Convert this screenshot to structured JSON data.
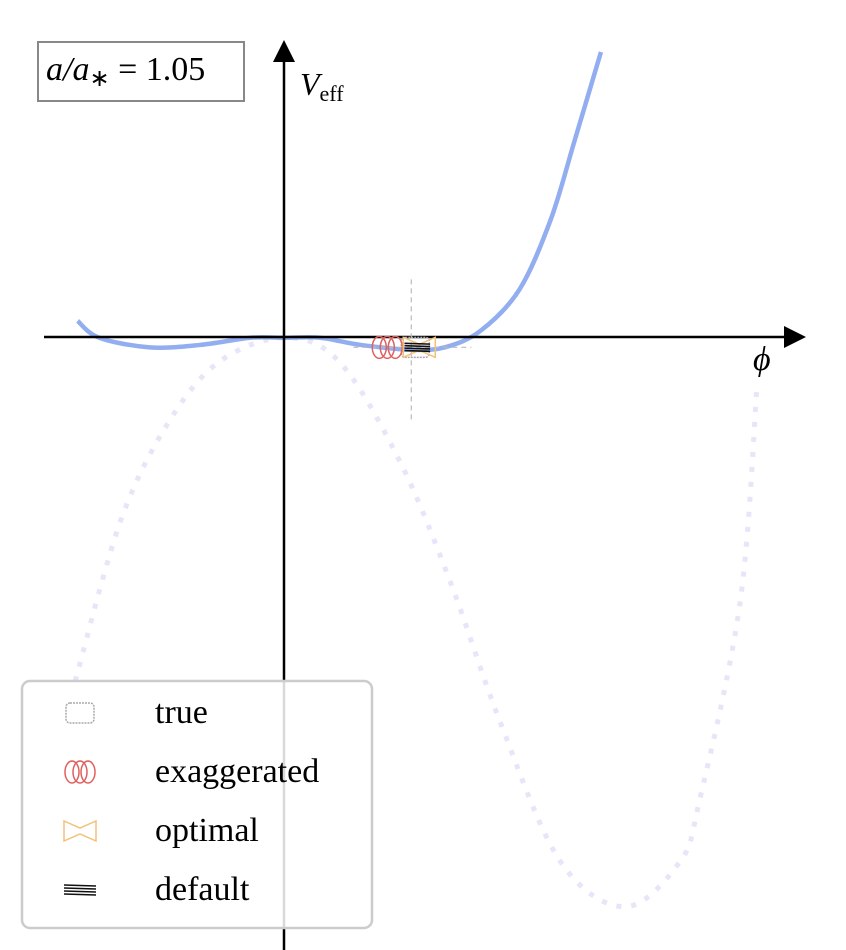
{
  "chart_data": {
    "type": "line",
    "annotation": [
      "a/a",
      "∗",
      " = 1.05"
    ],
    "y_label": [
      "V",
      "eff"
    ],
    "x_label": "ϕ",
    "xlim": [
      -1.0,
      2.17
    ],
    "ylim": [
      -2.55,
      1.24
    ],
    "series": [
      {
        "color": "#92aef0",
        "style": "solid",
        "x": [
          -0.86,
          -0.77,
          -0.56,
          -0.35,
          -0.14,
          0,
          0.15,
          0.32,
          0.53,
          0.67,
          0.82,
          0.98,
          1.11,
          1.21,
          1.32
        ],
        "y": [
          0.07,
          0,
          -0.04,
          -0.03,
          0,
          0,
          0,
          -0.03,
          -0.05,
          -0.04,
          0.03,
          0.2,
          0.49,
          0.82,
          1.19
        ]
      },
      {
        "color": "#e5e6f8",
        "style": "dotted",
        "x": [
          -0.87,
          -0.68,
          -0.48,
          -0.27,
          0,
          0.23,
          0.48,
          0.69,
          0.9,
          1.15,
          1.42,
          1.65,
          1.73,
          1.9,
          1.97
        ],
        "y": [
          -1.43,
          -0.76,
          -0.35,
          -0.1,
          0,
          -0.1,
          -0.51,
          -1.01,
          -1.6,
          -2.18,
          -2.37,
          -2.18,
          -1.93,
          -1.1,
          -0.2
        ]
      }
    ],
    "marker": {
      "x": 0.53,
      "y": -0.04
    },
    "legend": [
      {
        "name": "true",
        "color": "#aaaaaa"
      },
      {
        "name": "exaggerated",
        "color": "#e06060"
      },
      {
        "name": "optimal",
        "color": "#f5c07a"
      },
      {
        "name": "default",
        "color": "#111111"
      }
    ]
  }
}
